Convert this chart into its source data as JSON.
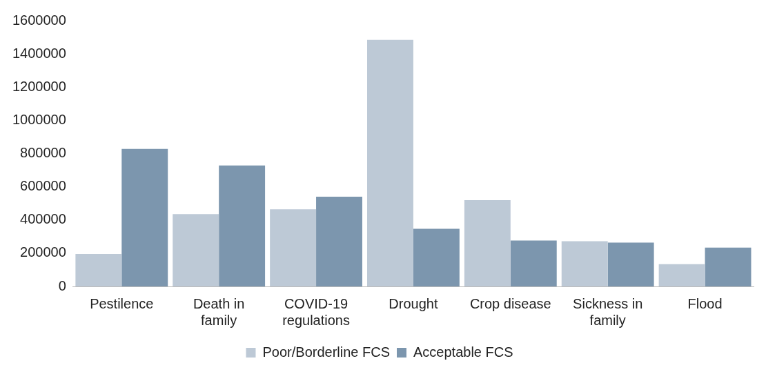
{
  "chart_data": {
    "type": "bar",
    "categories": [
      "Pestilence",
      "Death in family",
      "COVID-19 regulations",
      "Drought",
      "Crop disease",
      "Sickness in family",
      "Flood"
    ],
    "series": [
      {
        "name": "Poor/Borderline FCS",
        "color": "#bdc9d6",
        "values": [
          195000,
          435000,
          464000,
          1485000,
          519000,
          272000,
          134000
        ]
      },
      {
        "name": "Acceptable FCS",
        "color": "#7c96ae",
        "values": [
          828000,
          728000,
          540000,
          347000,
          276000,
          264000,
          234000
        ]
      }
    ],
    "ylim": [
      0,
      1600000
    ],
    "yticks": [
      0,
      200000,
      400000,
      600000,
      800000,
      1000000,
      1200000,
      1400000,
      1600000
    ],
    "grid": false,
    "legend": "bottom"
  }
}
